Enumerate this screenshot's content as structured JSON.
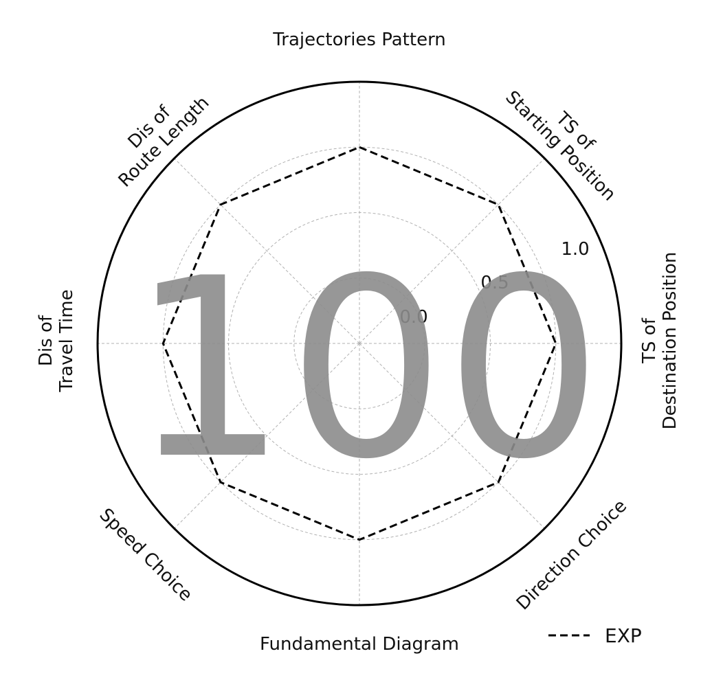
{
  "chart_data": {
    "type": "radar",
    "categories": [
      "Trajectories Pattern",
      "TS of\nStarting Position",
      "TS of\nDestination Position",
      "Direction Choice",
      "Fundamental Diagram",
      "Speed Choice",
      "Dis of\nTravel Time",
      "Dis of\nRoute Length"
    ],
    "series": [
      {
        "name": "EXP",
        "values": [
          1.0,
          1.0,
          1.0,
          1.0,
          1.0,
          1.0,
          1.0,
          1.0
        ],
        "color": "#000000",
        "line_style": "dashed"
      }
    ],
    "rlim": [
      -0.5,
      1.5
    ],
    "rticks": [
      0.0,
      0.5,
      1.0
    ],
    "rtick_labels": [
      "0.0",
      "0.5",
      "1.0"
    ],
    "grid": true,
    "legend_position": "bottom-right",
    "watermark": "100"
  }
}
